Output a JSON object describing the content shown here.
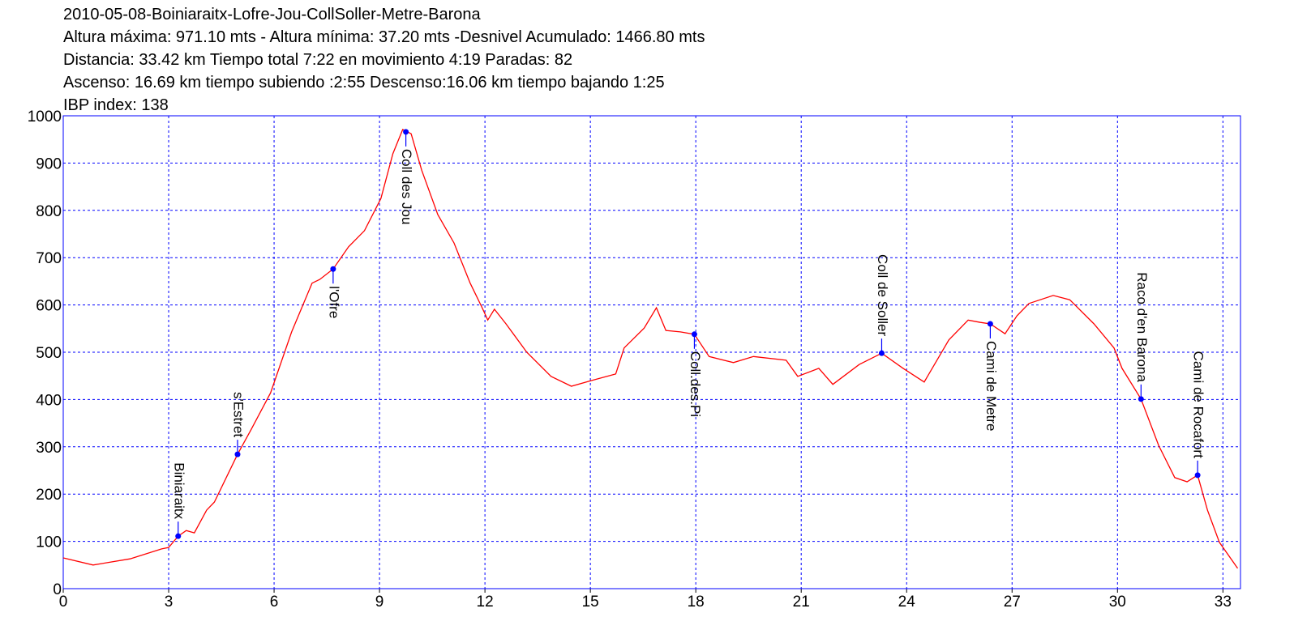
{
  "chart_data": {
    "type": "line",
    "title": "2010-05-08-Boiniaraitx-Lofre-Jou-CollSoller-Metre-Barona",
    "subtitles": [
      "Altura máxima: 971.10 mts - Altura mínima: 37.20 mts -Desnivel Acumulado: 1466.80 mts",
      "Distancia: 33.42 km  Tiempo total 7:22  en movimiento 4:19 Paradas: 82",
      "Ascenso: 16.69 km  tiempo subiendo :2:55  Descenso:16.06 km tiempo bajando 1:25",
      "IBP index: 138"
    ],
    "color": "#ff0000",
    "marker_color": "#0000ff",
    "grid": true,
    "xlim": [
      0,
      33.5
    ],
    "ylim": [
      0,
      1000
    ],
    "xticks": [
      0,
      3,
      6,
      9,
      12,
      15,
      18,
      21,
      24,
      27,
      30,
      33
    ],
    "yticks": [
      0,
      100,
      200,
      300,
      400,
      500,
      600,
      700,
      800,
      900,
      1000
    ],
    "x": [
      0,
      0.85,
      1.9,
      2.8,
      3.0,
      3.27,
      3.5,
      3.73,
      4.08,
      4.3,
      4.96,
      5.35,
      5.9,
      6.5,
      7.08,
      7.3,
      7.68,
      8.12,
      8.57,
      9.04,
      9.38,
      9.66,
      9.9,
      10.2,
      10.66,
      11.12,
      11.58,
      11.92,
      12.08,
      12.27,
      12.6,
      13.19,
      13.88,
      14.46,
      15.03,
      15.72,
      15.96,
      16.53,
      16.88,
      17.15,
      17.56,
      17.96,
      18.38,
      19.07,
      19.64,
      20.57,
      20.9,
      21.5,
      21.9,
      22.65,
      23.29,
      23.9,
      24.5,
      25.2,
      25.75,
      26.1,
      26.38,
      26.8,
      27.14,
      27.48,
      28.17,
      28.64,
      29.33,
      29.9,
      30.13,
      30.67,
      31.17,
      31.63,
      31.98,
      32.28,
      32.56,
      32.9,
      33.42
    ],
    "values": [
      65,
      50,
      63,
      84,
      87,
      111,
      123,
      118,
      166,
      183,
      284,
      337,
      414,
      543,
      646,
      654,
      676,
      723,
      757,
      825,
      920,
      971,
      962,
      885,
      791,
      731,
      646,
      594,
      568,
      591,
      560,
      500,
      449,
      428,
      440,
      454,
      509,
      551,
      594,
      546,
      543,
      538,
      491,
      478,
      491,
      483,
      449,
      466,
      432,
      474,
      498,
      466,
      437,
      526,
      568,
      563,
      560,
      539,
      577,
      603,
      620,
      611,
      560,
      509,
      466,
      401,
      303,
      235,
      226,
      240,
      166,
      98,
      43
    ],
    "waypoints": [
      {
        "name": "Biniaraitx",
        "x": 3.27,
        "y": 111,
        "label_position": "above"
      },
      {
        "name": "s'Estret",
        "x": 4.96,
        "y": 284,
        "label_position": "above"
      },
      {
        "name": "l'Ofre",
        "x": 7.68,
        "y": 676,
        "label_position": "below"
      },
      {
        "name": "Coll des Jou",
        "x": 9.75,
        "y": 966,
        "label_position": "below"
      },
      {
        "name": "Coll.des.Pi",
        "x": 17.96,
        "y": 538,
        "label_position": "below"
      },
      {
        "name": "Coll de Soller",
        "x": 23.29,
        "y": 498,
        "label_position": "above"
      },
      {
        "name": "Cami de Metre",
        "x": 26.38,
        "y": 560,
        "label_position": "below"
      },
      {
        "name": "Raco d'en Barona",
        "x": 30.67,
        "y": 401,
        "label_position": "above"
      },
      {
        "name": "Cami de Rocafort",
        "x": 32.28,
        "y": 240,
        "label_position": "above"
      }
    ]
  }
}
